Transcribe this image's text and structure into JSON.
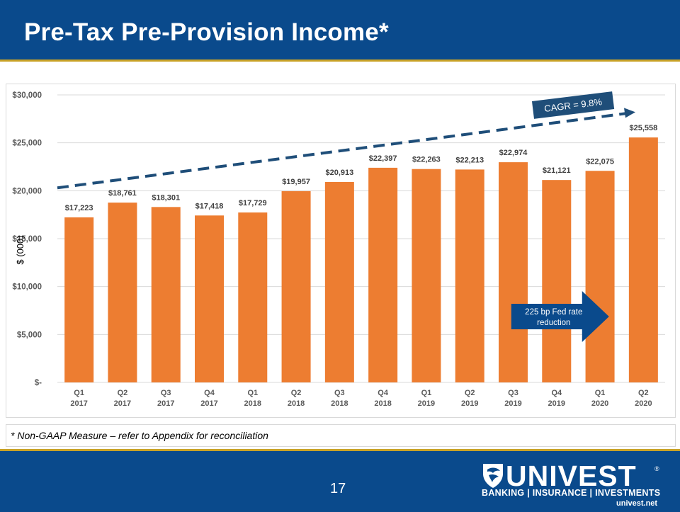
{
  "header": {
    "title": "Pre-Tax Pre-Provision Income*"
  },
  "footnote": "* Non-GAAP Measure – refer to Appendix for reconciliation",
  "footer": {
    "page_number": "17",
    "logo": {
      "wordmark": "UNIVEST",
      "registered": "®",
      "tagline": "BANKING | INSURANCE | INVESTMENTS",
      "url": "univest.net"
    }
  },
  "colors": {
    "brand": "#0a4a8c",
    "accent": "#c9a227",
    "bar": "#ed7d31",
    "trend": "#1f4e79",
    "arrow": "#0a4a8c"
  },
  "chart_data": {
    "type": "bar",
    "title": "",
    "ylabel": "$ (000)",
    "xlabel": "",
    "ylim": [
      0,
      30000
    ],
    "grid": true,
    "y_ticks": [
      {
        "value": 0,
        "label": "$-"
      },
      {
        "value": 5000,
        "label": "$5,000"
      },
      {
        "value": 10000,
        "label": "$10,000"
      },
      {
        "value": 15000,
        "label": "$15,000"
      },
      {
        "value": 20000,
        "label": "$20,000"
      },
      {
        "value": 25000,
        "label": "$25,000"
      },
      {
        "value": 30000,
        "label": "$30,000"
      }
    ],
    "categories": [
      {
        "quarter": "Q1",
        "year": "2017"
      },
      {
        "quarter": "Q2",
        "year": "2017"
      },
      {
        "quarter": "Q3",
        "year": "2017"
      },
      {
        "quarter": "Q4",
        "year": "2017"
      },
      {
        "quarter": "Q1",
        "year": "2018"
      },
      {
        "quarter": "Q2",
        "year": "2018"
      },
      {
        "quarter": "Q3",
        "year": "2018"
      },
      {
        "quarter": "Q4",
        "year": "2018"
      },
      {
        "quarter": "Q1",
        "year": "2019"
      },
      {
        "quarter": "Q2",
        "year": "2019"
      },
      {
        "quarter": "Q3",
        "year": "2019"
      },
      {
        "quarter": "Q4",
        "year": "2019"
      },
      {
        "quarter": "Q1",
        "year": "2020"
      },
      {
        "quarter": "Q2",
        "year": "2020"
      }
    ],
    "values": [
      17223,
      18761,
      18301,
      17418,
      17729,
      19957,
      20913,
      22397,
      22263,
      22213,
      22974,
      21121,
      22075,
      25558
    ],
    "data_labels": [
      "$17,223",
      "$18,761",
      "$18,301",
      "$17,418",
      "$17,729",
      "$19,957",
      "$20,913",
      "$22,397",
      "$22,263",
      "$22,213",
      "$22,974",
      "$21,121",
      "$22,075",
      "$25,558"
    ],
    "trend": {
      "label": "CAGR = 9.8%",
      "start_value": 20300,
      "end_value": 28200
    },
    "annotation": {
      "text_line1": "225 bp Fed rate",
      "text_line2": "reduction",
      "category_index": 11
    }
  }
}
